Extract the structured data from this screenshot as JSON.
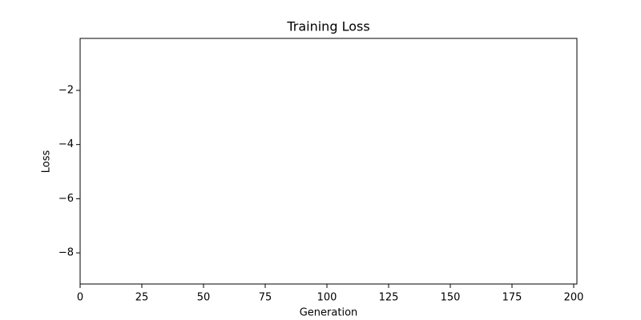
{
  "chart_data": {
    "type": "line",
    "title": "Training Loss",
    "x_label": "Generation",
    "y_label": "Loss",
    "xlim": [
      0,
      201.3
    ],
    "xticks": [
      0,
      25,
      50,
      75,
      100,
      125,
      150,
      175,
      200
    ],
    "ylim": [
      -9.15,
      -0.08
    ],
    "yticks": [
      {
        "value": -8,
        "label": "−8"
      },
      {
        "value": -6,
        "label": "−6"
      },
      {
        "value": -4,
        "label": "−4"
      },
      {
        "value": -2,
        "label": "−2"
      }
    ],
    "grid": false
  }
}
